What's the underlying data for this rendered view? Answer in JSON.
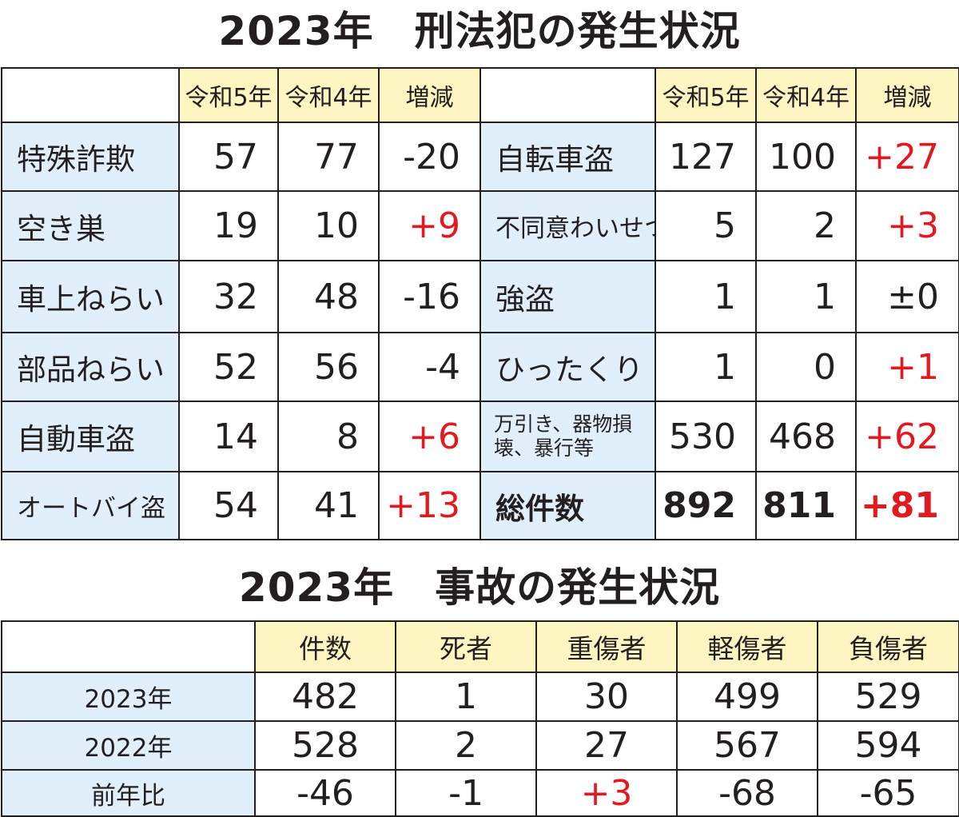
{
  "crime": {
    "title": "2023年　刑法犯の発生状況",
    "headers": {
      "r5": "令和5年",
      "r4": "令和4年",
      "diff": "増減"
    },
    "rows": [
      {
        "left": {
          "label": "特殊詐欺",
          "r5": "57",
          "r4": "77",
          "diff": "-20"
        },
        "right": {
          "label": "自転車盗",
          "r5": "127",
          "r4": "100",
          "diff": "+27"
        }
      },
      {
        "left": {
          "label": "空き巣",
          "r5": "19",
          "r4": "10",
          "diff": "+9"
        },
        "right": {
          "label": "不同意わいせつ",
          "r5": "5",
          "r4": "2",
          "diff": "+3"
        }
      },
      {
        "left": {
          "label": "車上ねらい",
          "r5": "32",
          "r4": "48",
          "diff": "-16"
        },
        "right": {
          "label": "強盗",
          "r5": "1",
          "r4": "1",
          "diff": "±0"
        }
      },
      {
        "left": {
          "label": "部品ねらい",
          "r5": "52",
          "r4": "56",
          "diff": "-4"
        },
        "right": {
          "label": "ひったくり",
          "r5": "1",
          "r4": "0",
          "diff": "+1"
        }
      },
      {
        "left": {
          "label": "自動車盗",
          "r5": "14",
          "r4": "8",
          "diff": "+6"
        },
        "right": {
          "label": "万引き、器物損壊、暴行等",
          "r5": "530",
          "r4": "468",
          "diff": "+62"
        }
      },
      {
        "left": {
          "label": "オートバイ盗",
          "r5": "54",
          "r4": "41",
          "diff": "+13"
        },
        "right": {
          "label": "総件数",
          "r5": "892",
          "r4": "811",
          "diff": "+81"
        }
      }
    ]
  },
  "accident": {
    "title": "2023年　事故の発生状況",
    "headers": [
      "件数",
      "死者",
      "重傷者",
      "軽傷者",
      "負傷者"
    ],
    "rows": [
      {
        "label": "2023年",
        "values": [
          "482",
          "1",
          "30",
          "499",
          "529"
        ]
      },
      {
        "label": "2022年",
        "values": [
          "528",
          "2",
          "27",
          "567",
          "594"
        ]
      },
      {
        "label": "前年比",
        "values": [
          "-46",
          "-1",
          "+3",
          "-68",
          "-65"
        ]
      }
    ]
  },
  "colors": {
    "header_bg": "#fdf6c3",
    "label_bg": "#e1effa",
    "increase_red": "#e3191f",
    "text": "#231f20"
  }
}
